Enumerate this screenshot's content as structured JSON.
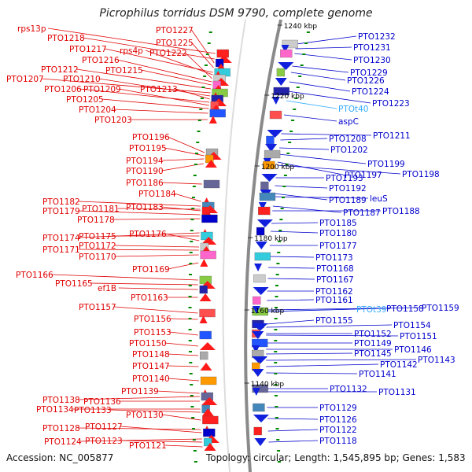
{
  "title": "Picrophilus torridus DSM 9790, complete genome",
  "accession": "Accession: NC_005877",
  "topology": "Topology: circular; Length: 1,545,895 bp; Genes: 1,583",
  "colors": {
    "left_label": "#e00000",
    "right_label": "#0000cc",
    "trna_label": "#33aaff",
    "backbone": "#8a8a8a",
    "tick": "#008800"
  },
  "kbp_ticks": [
    "1240 kbp",
    "1220 kbp",
    "1200 kbp",
    "1180 kbp",
    "1160 kbp",
    "1140 kbp"
  ],
  "left_labels": [
    "rps13p",
    "PTO1218",
    "PTO1227",
    "PTO1225",
    "PTO1217",
    "rps4p",
    "PTO1222",
    "PTO1216",
    "PTO1215",
    "PTO1212",
    "PTO1207",
    "PTO1210",
    "PTO1213",
    "PTO1206",
    "PTO1209",
    "PTO1205",
    "PTO1204",
    "PTO1203",
    "PTO1196",
    "PTO1195",
    "PTO1194",
    "PTO1190",
    "PTO1186",
    "PTO1184",
    "PTO1182",
    "PTO1181",
    "PTO1183",
    "PTO1179",
    "PTO1178",
    "PTO1174",
    "PTO1175",
    "PTO1176",
    "PTO1172",
    "PTO1171",
    "PTO1170",
    "PTO1169",
    "PTO1166",
    "PTO1165",
    "ef1B",
    "PTO1163",
    "PTO1157",
    "PTO1156",
    "PTO1153",
    "PTO1150",
    "PTO1148",
    "PTO1147",
    "PTO1140",
    "PTO1139",
    "PTO1138",
    "PTO1136",
    "PTO1134",
    "PTO1133",
    "PTO1130",
    "PTO1128",
    "PTO1127",
    "PTO1124",
    "PTO1123",
    "PTO1121"
  ],
  "right_labels": [
    "PTO1232",
    "PTO1231",
    "PTO1230",
    "PTO1229",
    "PTO1226",
    "PTO1224",
    "PTO1223",
    "PTOt40",
    "aspC",
    "PTO1211",
    "PTO1208",
    "PTO1202",
    "PTO1199",
    "PTO1197",
    "PTO1198",
    "PTO1193",
    "PTO1192",
    "PTO1189",
    "leuS",
    "PTO1187",
    "PTO1188",
    "PTO1185",
    "PTO1180",
    "PTO1177",
    "PTO1173",
    "PTO1168",
    "PTO1167",
    "PTO1162",
    "PTO1161",
    "PTOt39",
    "PTO1158",
    "PTO1159",
    "PTO1155",
    "PTO1154",
    "PTO1152",
    "PTO1151",
    "PTO1149",
    "PTO1146",
    "PTO1145",
    "PTO1143",
    "PTO1142",
    "PTO1141",
    "PTO1132",
    "PTO1131",
    "PTO1129",
    "PTO1126",
    "PTO1122",
    "PTO1118"
  ]
}
